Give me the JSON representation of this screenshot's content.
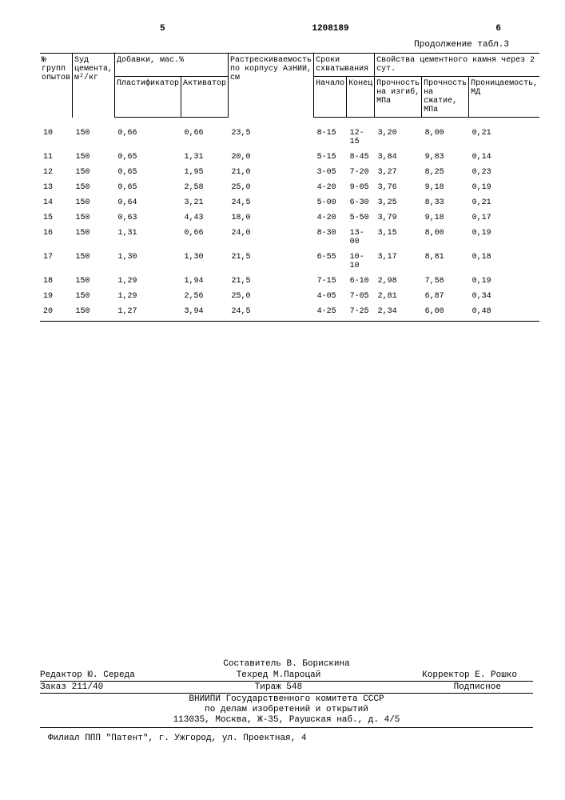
{
  "header": {
    "left_page": "5",
    "doc_number": "1208189",
    "right_page": "6",
    "caption": "Продолжение табл.3"
  },
  "table": {
    "head": {
      "c1": "№ групп опытов",
      "c2": "Sуд цемента, м²/кг",
      "g_dobavki": "Добавки, мас.%",
      "c3": "Пластификатор",
      "c4": "Активатор",
      "c5": "Растрескиваемость по корпусу АзНИИ, см",
      "g_sroki": "Сроки схватывания",
      "c6": "Начало",
      "c7": "Конец",
      "g_svoistva": "Свойства цементного камня через 2 сут.",
      "c8": "Прочность на изгиб, МПа",
      "c9": "Прочность на сжатие, МПа",
      "c10": "Проницаемость, МД"
    },
    "rows": [
      [
        "10",
        "150",
        "0,66",
        "0,66",
        "23,5",
        "8-15",
        "12-15",
        "3,20",
        "8,00",
        "0,21"
      ],
      [
        "11",
        "150",
        "0,65",
        "1,31",
        "20,0",
        "5-15",
        "8-45",
        "3,84",
        "9,83",
        "0,14"
      ],
      [
        "12",
        "150",
        "0,65",
        "1,95",
        "21,0",
        "3-05",
        "7-20",
        "3,27",
        "8,25",
        "0,23"
      ],
      [
        "13",
        "150",
        "0,65",
        "2,58",
        "25,0",
        "4-20",
        "9-05",
        "3,76",
        "9,18",
        "0,19"
      ],
      [
        "14",
        "150",
        "0,64",
        "3,21",
        "24,5",
        "5-00",
        "6-30",
        "3,25",
        "8,33",
        "0,21"
      ],
      [
        "15",
        "150",
        "0,63",
        "4,43",
        "18,0",
        "4-20",
        "5-50",
        "3,79",
        "9,18",
        "0,17"
      ],
      [
        "16",
        "150",
        "1,31",
        "0,66",
        "24,0",
        "8-30",
        "13-00",
        "3,15",
        "8,00",
        "0,19"
      ],
      [
        "17",
        "150",
        "1,30",
        "1,30",
        "21,5",
        "6-55",
        "10-10",
        "3,17",
        "8,81",
        "0,18"
      ],
      [
        "18",
        "150",
        "1,29",
        "1,94",
        "21,5",
        "7-15",
        "6-10",
        "2,98",
        "7,58",
        "0,19"
      ],
      [
        "19",
        "150",
        "1,29",
        "2,56",
        "25,0",
        "4-05",
        "7-05",
        "2,81",
        "6,87",
        "0,34"
      ],
      [
        "20",
        "150",
        "1,27",
        "3,94",
        "24,5",
        "4-25",
        "7-25",
        "2,34",
        "6,00",
        "0,48"
      ]
    ]
  },
  "footer": {
    "sostav": "Составитель В. Борискина",
    "redaktor": "Редактор Ю. Середа",
    "tehred": "Техред М.Пароцай",
    "korrektor": "Корректор Е. Рошко",
    "zakaz": "Заказ 211/40",
    "tirazh": "Тираж 548",
    "podpis": "Подписное",
    "org1": "ВНИИПИ Государственного комитета СССР",
    "org2": "по делам изобретений и открытий",
    "addr": "113035, Москва, Ж-35, Раушская наб., д. 4/5",
    "filial": "Филиал ППП \"Патент\", г. Ужгород, ул. Проектная, 4"
  }
}
